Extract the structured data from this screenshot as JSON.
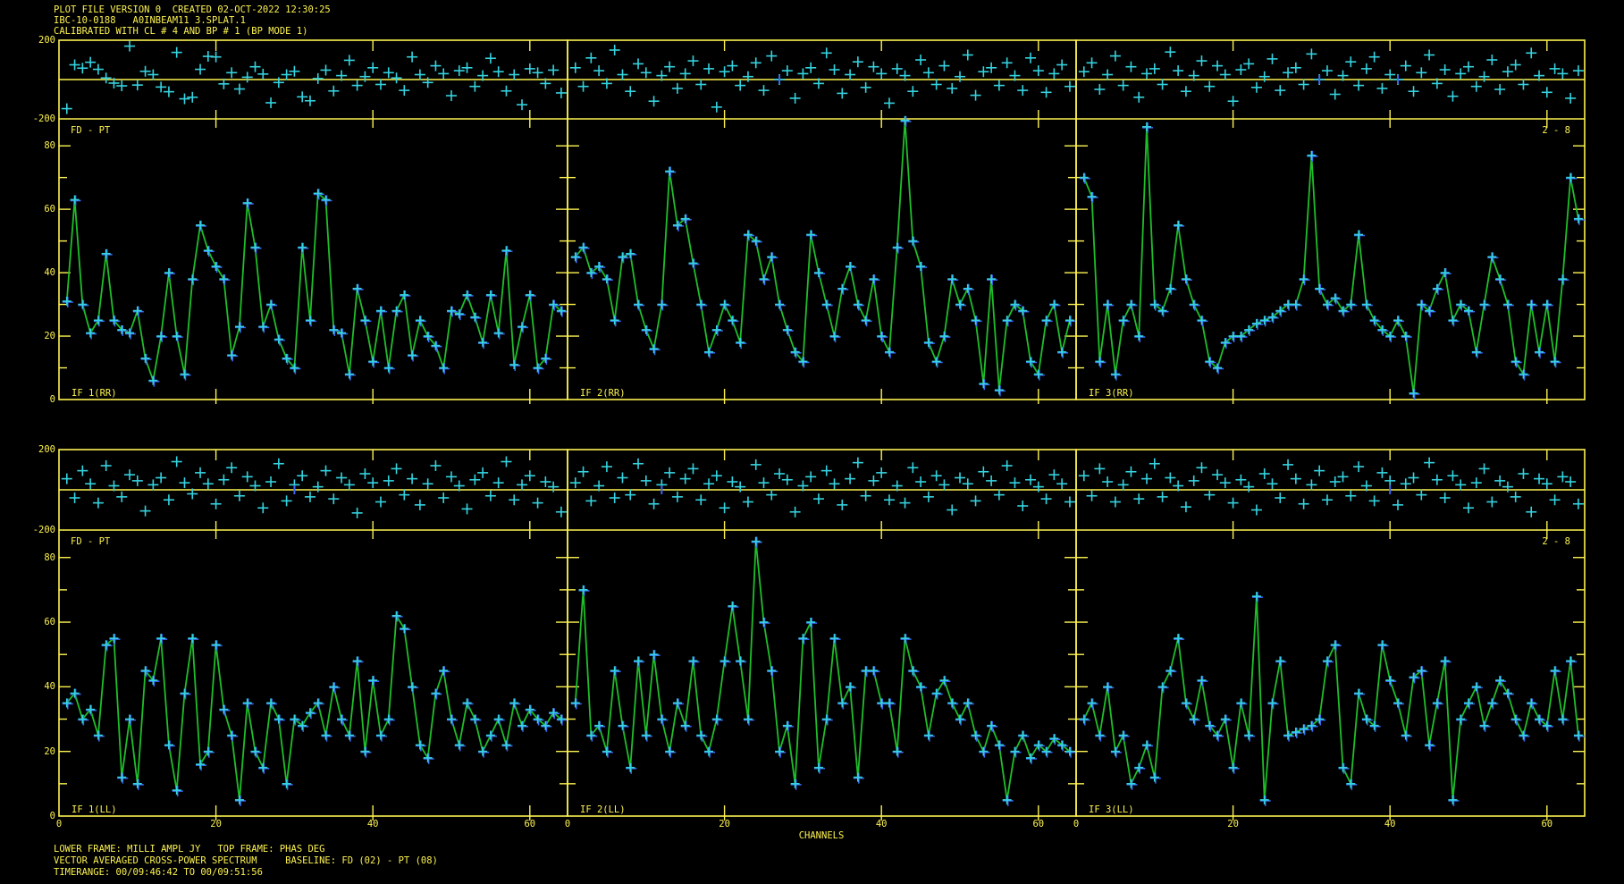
{
  "header": {
    "line1": "PLOT FILE VERSION 0  CREATED 02-OCT-2022 12:30:25",
    "line2": "IBC-10-0188   A0INBEAM11 3.SPLAT.1",
    "line3": "CALIBRATED WITH CL # 4 AND BP # 1 (BP MODE 1)"
  },
  "footer": {
    "line1": "LOWER FRAME: MILLI AMPL JY   TOP FRAME: PHAS DEG",
    "line2": "VECTOR AVERAGED CROSS-POWER SPECTRUM     BASELINE: FD (02) - PT (08)",
    "line3": "TIMERANGE: 00/09:46:42 TO 00/09:51:56"
  },
  "colors": {
    "background": "#000000",
    "axis_yellow": "#fdf351",
    "trace_green": "#1fbe2a",
    "marker_cyan": "#35d3e0",
    "marker_blue": "#3b66f0"
  },
  "axes": {
    "x_label": "CHANNELS",
    "x_ticks": [
      0,
      20,
      40,
      60
    ],
    "x_tick_labels": [
      "0",
      "20",
      "40",
      "60"
    ],
    "amp_tick_labels": [
      "0",
      "20",
      "40",
      "60",
      "80"
    ],
    "phase_tick_labels": [
      "200",
      "-200"
    ],
    "baseline_label": "FD - PT",
    "corner_label": "2 - 8"
  },
  "chart_data": {
    "type": "line+scatter multi-panel spectrum",
    "title": "VECTOR AVERAGED CROSS-POWER SPECTRUM",
    "xlabel": "CHANNELS",
    "lower_frame_units": "MILLI AMPL JY",
    "top_frame_units": "PHAS DEG",
    "x_range": [
      0,
      64.8
    ],
    "amplitude_range": [
      0,
      88.5
    ],
    "phase_range": [
      -200,
      200
    ],
    "panels": [
      {
        "label": "IF 1(RR)",
        "amplitude": [
          31,
          63,
          30,
          21,
          25,
          46,
          25,
          22,
          21,
          28,
          13,
          6,
          20,
          40,
          20,
          8,
          38,
          55,
          47,
          42,
          38,
          14,
          23,
          62,
          48,
          23,
          30,
          19,
          13,
          10,
          48,
          25,
          65,
          63,
          22,
          21,
          8,
          35,
          25,
          12,
          28,
          10,
          28,
          33,
          14,
          25,
          20,
          17,
          10,
          28,
          27,
          33,
          26,
          18,
          33,
          21,
          47,
          11,
          23,
          33,
          10,
          13,
          30,
          28
        ],
        "phase": [
          -148,
          75,
          58,
          88,
          52,
          8,
          -18,
          -32,
          170,
          -28,
          42,
          25,
          -38,
          -62,
          138,
          -98,
          -90,
          52,
          118,
          115,
          -22,
          35,
          -48,
          12,
          65,
          28,
          -118,
          -15,
          25,
          42,
          -88,
          -108,
          5,
          48,
          -58,
          20,
          98,
          -30,
          15,
          60,
          -25,
          35,
          8,
          -55,
          115,
          25,
          -15,
          70,
          30,
          -82,
          45,
          60,
          -35,
          20,
          108,
          40,
          -58,
          25,
          -128,
          55,
          35,
          -20,
          48,
          -68
        ],
        "flagged_channels": []
      },
      {
        "label": "IF 2(RR)",
        "amplitude": [
          45,
          48,
          40,
          42,
          38,
          25,
          45,
          46,
          30,
          22,
          16,
          30,
          72,
          55,
          57,
          43,
          30,
          15,
          22,
          30,
          25,
          18,
          52,
          50,
          38,
          45,
          30,
          22,
          15,
          12,
          52,
          40,
          30,
          20,
          35,
          42,
          30,
          25,
          38,
          20,
          15,
          48,
          88,
          50,
          42,
          18,
          12,
          20,
          38,
          30,
          35,
          25,
          5,
          38,
          3,
          25,
          30,
          28,
          12,
          8,
          25,
          30,
          15,
          25
        ],
        "phase": [
          60,
          -35,
          110,
          45,
          -20,
          150,
          25,
          -60,
          80,
          35,
          -110,
          20,
          65,
          -45,
          30,
          95,
          -25,
          55,
          -140,
          40,
          70,
          -30,
          15,
          85,
          -55,
          120,
          0,
          45,
          -95,
          30,
          60,
          -20,
          135,
          50,
          -70,
          25,
          90,
          -40,
          65,
          30,
          -120,
          55,
          20,
          -60,
          100,
          35,
          -25,
          70,
          -45,
          15,
          125,
          -80,
          40,
          60,
          -30,
          85,
          20,
          -55,
          110,
          45,
          -65,
          30,
          75,
          -35
        ],
        "flagged_channels": [
          27
        ]
      },
      {
        "label": "IF 3(RR)",
        "amplitude": [
          70,
          64,
          12,
          30,
          8,
          25,
          30,
          20,
          86,
          30,
          28,
          35,
          55,
          38,
          30,
          25,
          12,
          10,
          18,
          20,
          20,
          22,
          24,
          25,
          26,
          28,
          30,
          30,
          38,
          77,
          35,
          30,
          32,
          28,
          30,
          52,
          30,
          25,
          22,
          20,
          25,
          20,
          2,
          30,
          28,
          35,
          40,
          25,
          30,
          28,
          15,
          30,
          45,
          38,
          30,
          12,
          8,
          30,
          15,
          30,
          12,
          38,
          70,
          57
        ],
        "phase": [
          40,
          85,
          -50,
          25,
          120,
          -30,
          65,
          -90,
          30,
          55,
          -25,
          140,
          45,
          -60,
          20,
          95,
          -35,
          70,
          25,
          -110,
          50,
          80,
          -40,
          15,
          105,
          -55,
          35,
          60,
          -25,
          130,
          0,
          45,
          -75,
          20,
          90,
          -30,
          55,
          115,
          -45,
          25,
          0,
          70,
          -60,
          35,
          125,
          -20,
          50,
          -85,
          30,
          65,
          -35,
          15,
          100,
          -50,
          40,
          75,
          -25,
          135,
          20,
          -65,
          55,
          30,
          -95,
          45
        ],
        "flagged_channels": [
          31,
          41
        ]
      },
      {
        "label": "IF 1(LL)",
        "amplitude": [
          35,
          38,
          30,
          33,
          25,
          53,
          55,
          12,
          30,
          10,
          45,
          42,
          55,
          22,
          8,
          38,
          55,
          16,
          20,
          53,
          33,
          25,
          5,
          35,
          20,
          15,
          35,
          30,
          10,
          30,
          28,
          32,
          35,
          25,
          40,
          30,
          25,
          48,
          20,
          42,
          25,
          30,
          62,
          58,
          40,
          22,
          18,
          38,
          45,
          30,
          22,
          35,
          30,
          20,
          25,
          30,
          22,
          35,
          28,
          33,
          30,
          28,
          32,
          30
        ],
        "phase": [
          55,
          -40,
          95,
          30,
          -65,
          120,
          20,
          -35,
          75,
          45,
          -105,
          25,
          60,
          -50,
          140,
          35,
          -20,
          85,
          30,
          -70,
          50,
          110,
          -30,
          65,
          20,
          -90,
          40,
          130,
          -55,
          25,
          70,
          -35,
          15,
          95,
          -45,
          60,
          25,
          -115,
          80,
          35,
          -60,
          45,
          105,
          -25,
          55,
          -75,
          30,
          120,
          -40,
          65,
          20,
          -95,
          50,
          85,
          -30,
          35,
          140,
          -50,
          25,
          70,
          -65,
          40,
          15,
          -110
        ],
        "flagged_channels": [
          30
        ]
      },
      {
        "label": "IF 2(LL)",
        "amplitude": [
          35,
          70,
          25,
          28,
          20,
          45,
          28,
          15,
          48,
          25,
          50,
          30,
          20,
          35,
          28,
          48,
          25,
          20,
          30,
          48,
          65,
          48,
          30,
          85,
          60,
          45,
          20,
          28,
          10,
          55,
          60,
          15,
          30,
          55,
          35,
          40,
          12,
          45,
          45,
          35,
          35,
          20,
          55,
          45,
          40,
          25,
          38,
          42,
          35,
          30,
          35,
          25,
          20,
          28,
          22,
          5,
          20,
          25,
          18,
          22,
          20,
          24,
          22,
          20
        ],
        "phase": [
          35,
          90,
          -55,
          20,
          115,
          -40,
          60,
          -25,
          130,
          45,
          -70,
          25,
          85,
          -35,
          55,
          105,
          -50,
          30,
          70,
          -90,
          40,
          15,
          -60,
          125,
          35,
          -25,
          80,
          50,
          -110,
          20,
          65,
          -45,
          95,
          30,
          -75,
          55,
          135,
          -30,
          45,
          85,
          -50,
          20,
          -65,
          110,
          40,
          -35,
          70,
          25,
          -100,
          60,
          30,
          -55,
          90,
          45,
          -25,
          120,
          35,
          -80,
          50,
          15,
          -45,
          75,
          30,
          -60
        ],
        "flagged_channels": [
          12
        ]
      },
      {
        "label": "IF 3(LL)",
        "amplitude": [
          30,
          35,
          25,
          40,
          20,
          25,
          10,
          15,
          22,
          12,
          40,
          45,
          55,
          35,
          30,
          42,
          28,
          25,
          30,
          15,
          35,
          25,
          68,
          5,
          35,
          48,
          25,
          26,
          27,
          28,
          30,
          48,
          53,
          15,
          10,
          38,
          30,
          28,
          53,
          42,
          35,
          25,
          43,
          45,
          22,
          35,
          48,
          5,
          30,
          35,
          40,
          28,
          35,
          42,
          38,
          30,
          25,
          35,
          30,
          28,
          45,
          30,
          48,
          25
        ],
        "phase": [
          70,
          -30,
          105,
          40,
          -60,
          25,
          90,
          -45,
          55,
          130,
          -35,
          60,
          20,
          -85,
          45,
          110,
          -25,
          75,
          35,
          -65,
          50,
          15,
          -100,
          80,
          30,
          -40,
          125,
          55,
          -70,
          25,
          95,
          -50,
          40,
          65,
          -30,
          115,
          20,
          -55,
          85,
          45,
          -75,
          30,
          60,
          -25,
          135,
          50,
          -40,
          70,
          25,
          -90,
          35,
          105,
          -60,
          45,
          15,
          -35,
          80,
          -110,
          55,
          30,
          -50,
          65,
          40,
          -70
        ],
        "flagged_channels": [
          40
        ]
      }
    ]
  }
}
